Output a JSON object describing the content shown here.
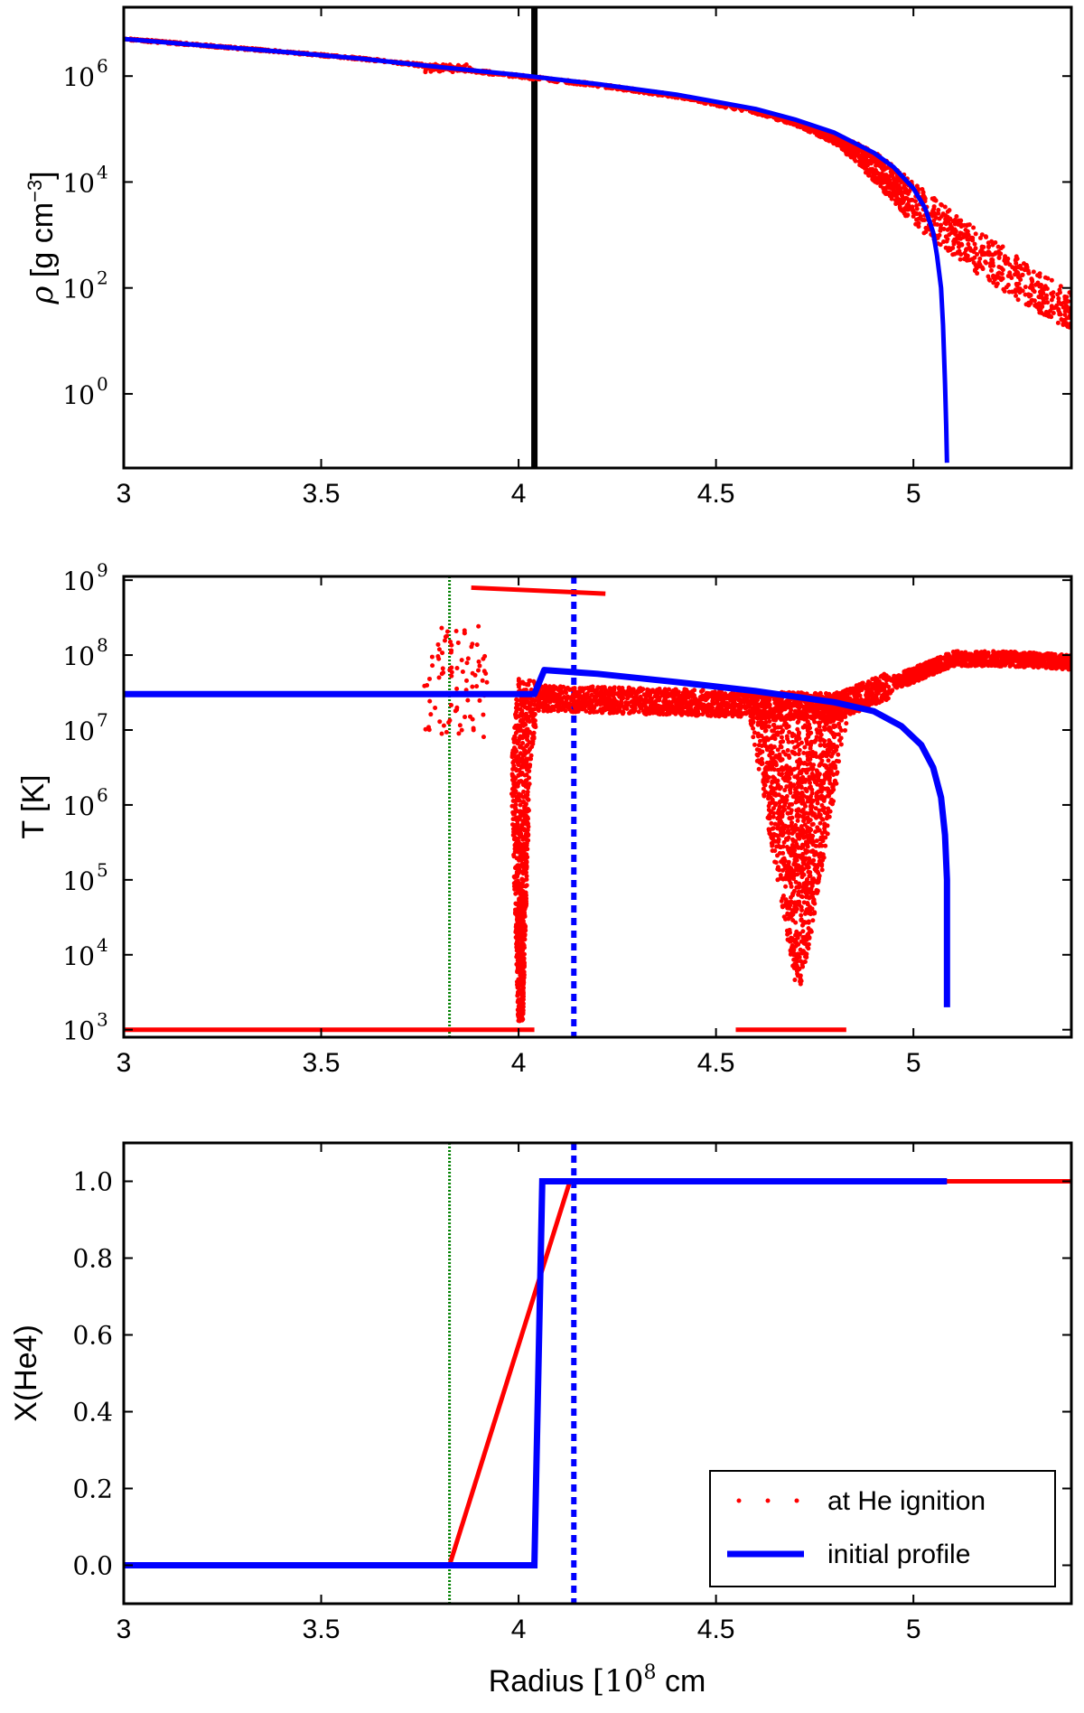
{
  "chart_data": [
    {
      "type": "scatter",
      "panel": "density",
      "xlim": [
        3,
        5.4
      ],
      "y_scale": "log",
      "ylim_exp": [
        -1.4,
        7.3
      ],
      "ylabel": "ρ [g cm−3]",
      "x_ticks": [
        "3",
        "3.5",
        "4",
        "4.5",
        "5"
      ],
      "x_tick_values": [
        3,
        3.5,
        4,
        4.5,
        5
      ],
      "y_ticks": [
        {
          "exp": 6,
          "base": "10",
          "sup": "6"
        },
        {
          "exp": 4,
          "base": "10",
          "sup": "4"
        },
        {
          "exp": 2,
          "base": "10",
          "sup": "2"
        },
        {
          "exp": 0,
          "base": "10",
          "sup": "0"
        }
      ],
      "vlines": [
        {
          "x": 4.04,
          "color": "#000000",
          "style": "solid"
        }
      ],
      "series": [
        {
          "name": "initial profile",
          "color": "#0000ff",
          "kind": "line",
          "x": [
            3.0,
            3.2,
            3.4,
            3.6,
            3.8,
            4.0,
            4.2,
            4.4,
            4.6,
            4.7,
            4.8,
            4.9,
            4.95,
            5.0,
            5.03,
            5.05,
            5.06,
            5.07,
            5.075,
            5.08,
            5.083,
            5.085
          ],
          "log_y": [
            6.7,
            6.58,
            6.46,
            6.33,
            6.17,
            6.02,
            5.85,
            5.65,
            5.38,
            5.18,
            4.93,
            4.55,
            4.28,
            3.88,
            3.5,
            3.05,
            2.6,
            2.0,
            1.3,
            0.2,
            -0.6,
            -1.3
          ]
        },
        {
          "name": "at He ignition",
          "color": "#ff0000",
          "kind": "scatter",
          "x": [
            3.0,
            3.2,
            3.4,
            3.6,
            3.8,
            4.0,
            4.2,
            4.4,
            4.6,
            4.7,
            4.8,
            4.85,
            4.9,
            4.95,
            5.0,
            5.1,
            5.2,
            5.3,
            5.4
          ],
          "log_y": [
            6.7,
            6.58,
            6.46,
            6.33,
            6.17,
            6.0,
            5.83,
            5.62,
            5.33,
            5.12,
            4.82,
            4.58,
            4.3,
            3.95,
            3.6,
            3.0,
            2.5,
            2.0,
            1.55
          ],
          "log_y_spread": [
            0.02,
            0.02,
            0.02,
            0.02,
            0.03,
            0.03,
            0.03,
            0.03,
            0.04,
            0.05,
            0.1,
            0.18,
            0.28,
            0.35,
            0.4,
            0.42,
            0.42,
            0.4,
            0.35
          ]
        }
      ]
    },
    {
      "type": "scatter",
      "panel": "temperature",
      "xlim": [
        3,
        5.4
      ],
      "y_scale": "log",
      "ylim_exp": [
        2.9,
        9.05
      ],
      "ylabel": "T [K]",
      "x_ticks": [
        "3",
        "3.5",
        "4",
        "4.5",
        "5"
      ],
      "x_tick_values": [
        3,
        3.5,
        4,
        4.5,
        5
      ],
      "y_ticks": [
        {
          "exp": 9,
          "base": "10",
          "sup": "9"
        },
        {
          "exp": 8,
          "base": "10",
          "sup": "8"
        },
        {
          "exp": 7,
          "base": "10",
          "sup": "7"
        },
        {
          "exp": 6,
          "base": "10",
          "sup": "6"
        },
        {
          "exp": 5,
          "base": "10",
          "sup": "5"
        },
        {
          "exp": 4,
          "base": "10",
          "sup": "4"
        },
        {
          "exp": 3,
          "base": "10",
          "sup": "3"
        }
      ],
      "vlines": [
        {
          "x": 3.825,
          "color": "#008000",
          "style": "dotted"
        },
        {
          "x": 4.14,
          "color": "#0000ff",
          "style": "dashed"
        }
      ],
      "series": [
        {
          "name": "initial profile",
          "color": "#0000ff",
          "kind": "line",
          "x": [
            3.0,
            4.04,
            4.065,
            4.2,
            4.4,
            4.6,
            4.8,
            4.9,
            4.97,
            5.02,
            5.05,
            5.07,
            5.08,
            5.085,
            5.085
          ],
          "log_y": [
            7.48,
            7.48,
            7.8,
            7.75,
            7.64,
            7.52,
            7.37,
            7.25,
            7.05,
            6.8,
            6.5,
            6.1,
            5.6,
            5.0,
            3.3
          ]
        },
        {
          "name": "at He ignition",
          "color": "#ff0000",
          "kind": "scatter",
          "segments": [
            {
              "x": [
                3.0,
                4.04
              ],
              "log_y": [
                3.0,
                3.0
              ]
            },
            {
              "x": [
                4.55,
                4.83
              ],
              "log_y": [
                3.0,
                3.0
              ]
            },
            {
              "x": [
                3.88,
                4.22
              ],
              "log_y": [
                8.9,
                8.82
              ]
            }
          ],
          "clouds": [
            {
              "region": "3.75-3.92",
              "log_y_range": [
                6.9,
                8.4
              ]
            },
            {
              "region": "3.98-4.06",
              "log_y_range": [
                3.1,
                7.75
              ]
            },
            {
              "region": "4.06-4.82",
              "log_y_range": [
                7.3,
                7.55
              ]
            },
            {
              "region": "4.55-4.85",
              "log_y_range": [
                3.6,
                7.4
              ]
            },
            {
              "region": "4.82-5.4",
              "log_y_range": [
                7.5,
                8.05
              ]
            }
          ]
        }
      ]
    },
    {
      "type": "line",
      "panel": "helium-fraction",
      "xlim": [
        3,
        5.4
      ],
      "ylim": [
        -0.1,
        1.1
      ],
      "ylabel": "X(He4)",
      "xlabel": "Radius [10⁸ cm]",
      "xlabel_parts": {
        "main": "Radius ",
        "bracket_open": "[",
        "base": "10",
        "sup": "8",
        "unit": " cm",
        "bracket_close": "]"
      },
      "x_ticks": [
        "3",
        "3.5",
        "4",
        "4.5",
        "5"
      ],
      "x_tick_values": [
        3,
        3.5,
        4,
        4.5,
        5
      ],
      "y_ticks": [
        "0.0",
        "0.2",
        "0.4",
        "0.6",
        "0.8",
        "1.0"
      ],
      "y_tick_values": [
        0.0,
        0.2,
        0.4,
        0.6,
        0.8,
        1.0
      ],
      "vlines": [
        {
          "x": 3.825,
          "color": "#008000",
          "style": "dotted"
        },
        {
          "x": 4.14,
          "color": "#0000ff",
          "style": "dashed"
        }
      ],
      "series": [
        {
          "name": "at He ignition",
          "color": "#ff0000",
          "x": [
            3.0,
            3.825,
            4.13,
            5.4
          ],
          "y": [
            0.0,
            0.0,
            1.0,
            1.0
          ]
        },
        {
          "name": "initial profile",
          "color": "#0000ff",
          "x": [
            3.0,
            4.04,
            4.06,
            5.085
          ],
          "y": [
            0.0,
            0.0,
            1.0,
            1.0
          ]
        }
      ],
      "legend": {
        "position": "lower-right",
        "entries": [
          "at He ignition",
          "initial profile"
        ]
      }
    }
  ]
}
